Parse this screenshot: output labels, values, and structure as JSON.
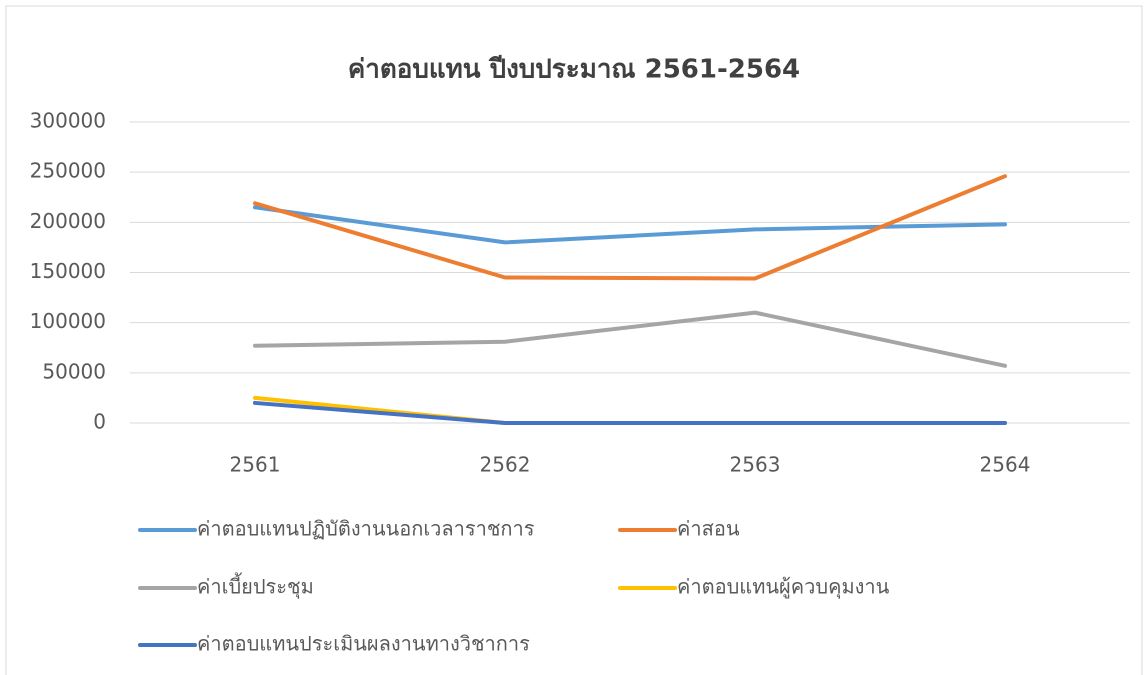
{
  "chart_data": {
    "type": "line",
    "title": "ค่าตอบแทน ปีงบประมาณ 2561-2564",
    "categories": [
      "2561",
      "2562",
      "2563",
      "2564"
    ],
    "series": [
      {
        "name": "ค่าตอบแทนปฏิบัติงานนอกเวลาราชการ",
        "color": "#5b9bd5",
        "values": [
          215000,
          180000,
          193000,
          198000
        ]
      },
      {
        "name": "ค่าสอน",
        "color": "#ed7d31",
        "values": [
          219000,
          145000,
          144000,
          246000
        ]
      },
      {
        "name": "ค่าเบี้ยประชุม",
        "color": "#a5a5a5",
        "values": [
          77000,
          81000,
          110000,
          57000
        ]
      },
      {
        "name": "ค่าตอบแทนผู้ควบคุมงาน",
        "color": "#ffc000",
        "values": [
          25000,
          0,
          0,
          0
        ]
      },
      {
        "name": "ค่าตอบแทนประเมินผลงานทางวิชาการ",
        "color": "#4472c4",
        "values": [
          20000,
          0,
          0,
          0
        ]
      }
    ],
    "ylim": [
      0,
      300000
    ],
    "yticks": [
      0,
      50000,
      100000,
      150000,
      200000,
      250000,
      300000
    ],
    "grid": true,
    "legend": "bottom"
  }
}
